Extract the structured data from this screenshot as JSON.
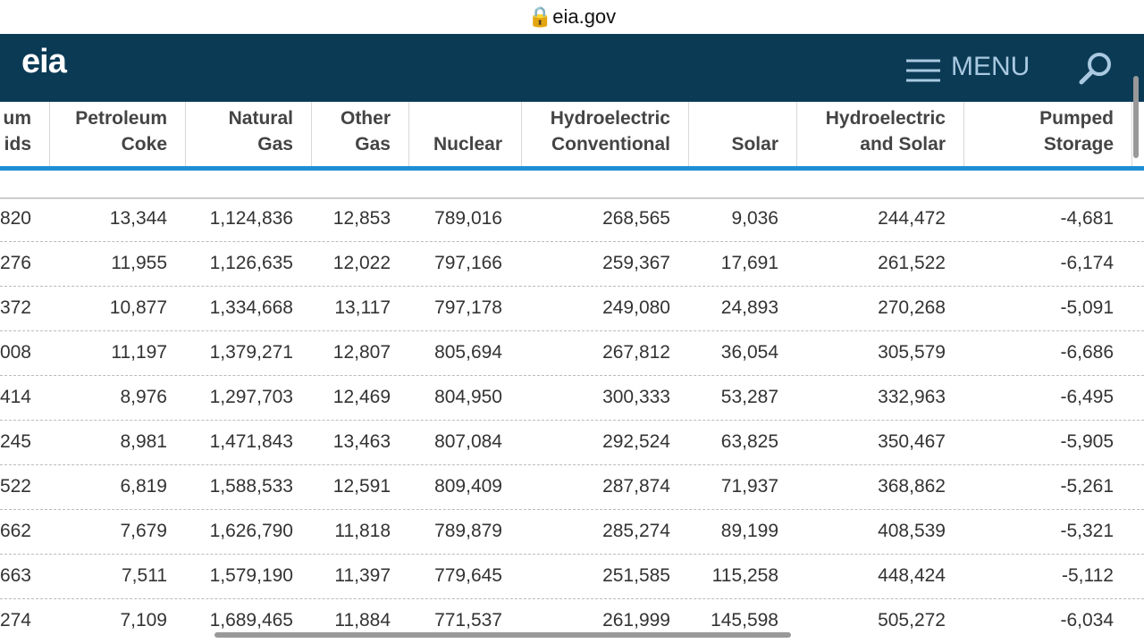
{
  "browser": {
    "url": "eia.gov"
  },
  "header": {
    "logo": "eia",
    "menu": "MENU"
  },
  "table": {
    "columns": [
      [
        "um",
        "ids"
      ],
      [
        "Petroleum",
        "Coke"
      ],
      [
        "Natural",
        "Gas"
      ],
      [
        "Other",
        "Gas"
      ],
      [
        "Nuclear"
      ],
      [
        "Hydroelectric",
        "Conventional"
      ],
      [
        "Solar"
      ],
      [
        "Hydroelectric",
        "and Solar"
      ],
      [
        "Pumped",
        "Storage"
      ]
    ],
    "rows": [
      [
        "820",
        "13,344",
        "1,124,836",
        "12,853",
        "789,016",
        "268,565",
        "9,036",
        "244,472",
        "-4,681"
      ],
      [
        "276",
        "11,955",
        "1,126,635",
        "12,022",
        "797,166",
        "259,367",
        "17,691",
        "261,522",
        "-6,174"
      ],
      [
        "372",
        "10,877",
        "1,334,668",
        "13,117",
        "797,178",
        "249,080",
        "24,893",
        "270,268",
        "-5,091"
      ],
      [
        "008",
        "11,197",
        "1,379,271",
        "12,807",
        "805,694",
        "267,812",
        "36,054",
        "305,579",
        "-6,686"
      ],
      [
        "414",
        "8,976",
        "1,297,703",
        "12,469",
        "804,950",
        "300,333",
        "53,287",
        "332,963",
        "-6,495"
      ],
      [
        "245",
        "8,981",
        "1,471,843",
        "13,463",
        "807,084",
        "292,524",
        "63,825",
        "350,467",
        "-5,905"
      ],
      [
        "522",
        "6,819",
        "1,588,533",
        "12,591",
        "809,409",
        "287,874",
        "71,937",
        "368,862",
        "-5,261"
      ],
      [
        "662",
        "7,679",
        "1,626,790",
        "11,818",
        "789,879",
        "285,274",
        "89,199",
        "408,539",
        "-5,321"
      ],
      [
        "663",
        "7,511",
        "1,579,190",
        "11,397",
        "779,645",
        "251,585",
        "115,258",
        "448,424",
        "-5,112"
      ],
      [
        "274",
        "7,109",
        "1,689,465",
        "11,884",
        "771,537",
        "261,999",
        "145,598",
        "505,272",
        "-6,034"
      ]
    ]
  }
}
